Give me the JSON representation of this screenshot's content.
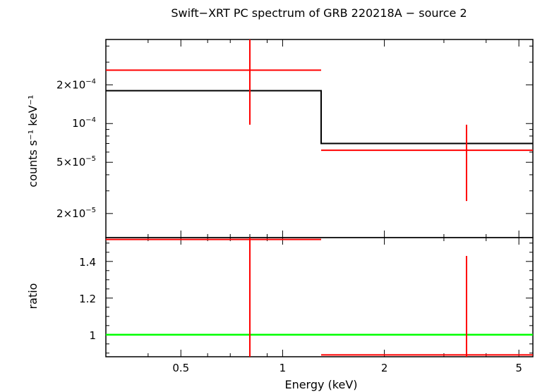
{
  "chart_data": [
    {
      "type": "scatter",
      "title": "Swift−XRT PC spectrum of GRB 220218A − source 2",
      "xlabel": "Energy (keV)",
      "ylabel": "counts s⁻¹ keV⁻¹",
      "xscale": "log",
      "yscale": "log",
      "xlim": [
        0.3,
        5.5
      ],
      "ylim": [
        1.3e-05,
        0.00045
      ],
      "yticks": [
        {
          "value": 2e-05,
          "label_mant": "2×10",
          "label_exp": "−5"
        },
        {
          "value": 5e-05,
          "label_mant": "5×10",
          "label_exp": "−5"
        },
        {
          "value": 0.0001,
          "label_mant": "10",
          "label_exp": "−4"
        },
        {
          "value": 0.0002,
          "label_mant": "2×10",
          "label_exp": "−4"
        }
      ],
      "series": [
        {
          "role": "data",
          "color": "#ff0000",
          "points": [
            {
              "x": 0.8,
              "xlo": 0.3,
              "xhi": 1.3,
              "y": 0.00026,
              "ylo": 9.8e-05,
              "yhi": 0.00045
            },
            {
              "x": 3.5,
              "xlo": 1.3,
              "xhi": 5.5,
              "y": 6.2e-05,
              "ylo": 2.5e-05,
              "yhi": 9.8e-05
            }
          ]
        },
        {
          "role": "model",
          "color": "#000000",
          "steps": [
            {
              "xlo": 0.3,
              "xhi": 1.3,
              "y": 0.00018
            },
            {
              "xlo": 1.3,
              "xhi": 5.5,
              "y": 7e-05
            }
          ]
        }
      ]
    },
    {
      "type": "scatter",
      "xlabel": "Energy (keV)",
      "ylabel": "ratio",
      "xscale": "log",
      "xlim": [
        0.3,
        5.5
      ],
      "ylim": [
        0.88,
        1.53
      ],
      "yticks": [
        {
          "value": 1,
          "label": "1"
        },
        {
          "value": 1.2,
          "label": "1.2"
        },
        {
          "value": 1.4,
          "label": "1.4"
        }
      ],
      "xticks": [
        {
          "value": 0.5,
          "label": "0.5"
        },
        {
          "value": 1,
          "label": "1"
        },
        {
          "value": 2,
          "label": "2"
        },
        {
          "value": 5,
          "label": "5"
        }
      ],
      "reference_line": {
        "y": 1,
        "color": "#00ff00"
      },
      "series": [
        {
          "role": "ratio",
          "color": "#ff0000",
          "points": [
            {
              "x": 0.8,
              "xlo": 0.3,
              "xhi": 1.3,
              "y": 1.52,
              "ylo": 0.88,
              "yhi": 1.53
            },
            {
              "x": 3.5,
              "xlo": 1.3,
              "xhi": 5.5,
              "y": 0.89,
              "ylo": 0.88,
              "yhi": 1.43
            }
          ]
        }
      ]
    }
  ]
}
